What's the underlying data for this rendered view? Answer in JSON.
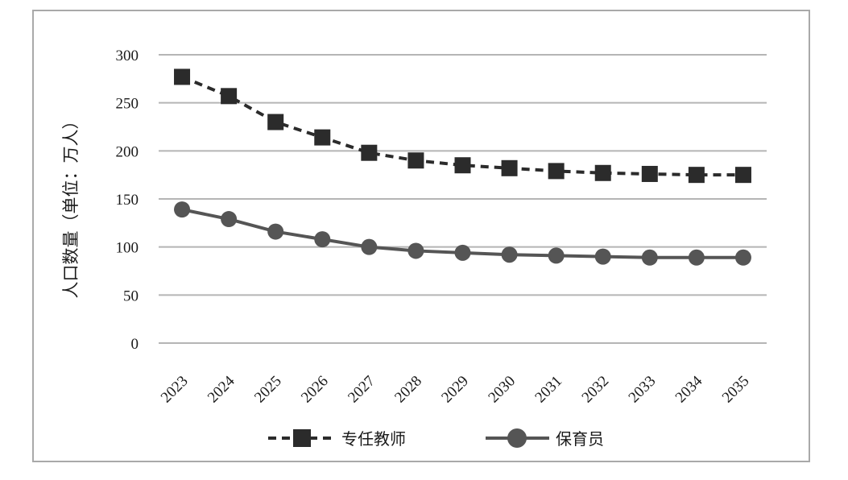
{
  "chart_data": {
    "type": "line",
    "title": "",
    "xlabel": "",
    "ylabel": "人口数量（单位：万人）",
    "x": [
      "2023",
      "2024",
      "2025",
      "2026",
      "2027",
      "2028",
      "2029",
      "2030",
      "2031",
      "2032",
      "2033",
      "2034",
      "2035"
    ],
    "yticks": [
      "0",
      "50",
      "100",
      "150",
      "200",
      "250",
      "300"
    ],
    "ylim": [
      0,
      300
    ],
    "grid": true,
    "legend": "bottom",
    "series": [
      {
        "name": "专任教师",
        "style": "dashed-square",
        "color": "#2b2b2b",
        "values": [
          277,
          257,
          230,
          214,
          198,
          190,
          185,
          182,
          179,
          177,
          176,
          175,
          175
        ]
      },
      {
        "name": "保育员",
        "style": "solid-circle",
        "color": "#555555",
        "values": [
          139,
          129,
          116,
          108,
          100,
          96,
          94,
          92,
          91,
          90,
          89,
          89,
          89
        ]
      }
    ]
  }
}
